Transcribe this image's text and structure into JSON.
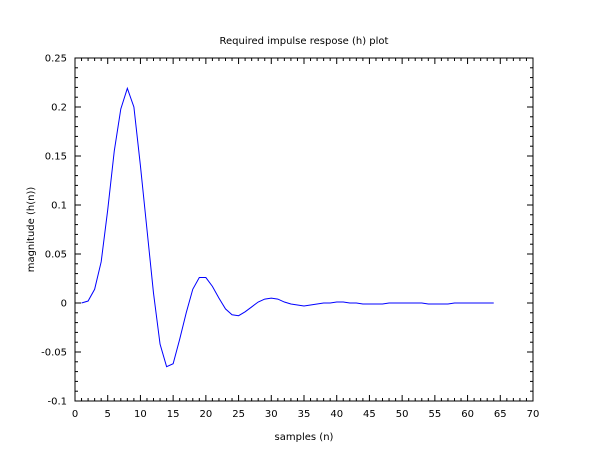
{
  "chart_data": {
    "type": "line",
    "title": "Required impulse respose (h) plot",
    "xlabel": "samples (n)",
    "ylabel": "magnitude (h(n))",
    "xlim": [
      0,
      70
    ],
    "ylim": [
      -0.1,
      0.25
    ],
    "xticks": [
      0,
      5,
      10,
      15,
      20,
      25,
      30,
      35,
      40,
      45,
      50,
      55,
      60,
      65,
      70
    ],
    "yticks": [
      -0.1,
      -0.05,
      0,
      0.05,
      0.1,
      0.15,
      0.2,
      0.25
    ],
    "xtick_labels": [
      "0",
      "5",
      "10",
      "15",
      "20",
      "25",
      "30",
      "35",
      "40",
      "45",
      "50",
      "55",
      "60",
      "65",
      "70"
    ],
    "ytick_labels": [
      "-0.1",
      "-0.05",
      "0",
      "0.05",
      "0.1",
      "0.15",
      "0.2",
      "0.25"
    ],
    "grid": false,
    "series": [
      {
        "color": "#0000ff",
        "x": [
          1,
          2,
          3,
          4,
          5,
          6,
          7,
          8,
          9,
          10,
          11,
          12,
          13,
          14,
          15,
          16,
          17,
          18,
          19,
          20,
          21,
          22,
          23,
          24,
          25,
          26,
          27,
          28,
          29,
          30,
          31,
          32,
          33,
          34,
          35,
          36,
          37,
          38,
          39,
          40,
          41,
          42,
          43,
          44,
          45,
          46,
          47,
          48,
          49,
          50,
          51,
          52,
          53,
          54,
          55,
          56,
          57,
          58,
          59,
          60,
          61,
          62,
          63,
          64
        ],
        "y": [
          0.0,
          0.002,
          0.014,
          0.042,
          0.095,
          0.155,
          0.198,
          0.219,
          0.2,
          0.14,
          0.075,
          0.01,
          -0.042,
          -0.065,
          -0.062,
          -0.037,
          -0.01,
          0.014,
          0.026,
          0.026,
          0.017,
          0.005,
          -0.006,
          -0.012,
          -0.013,
          -0.009,
          -0.004,
          0.001,
          0.004,
          0.005,
          0.004,
          0.001,
          -0.001,
          -0.002,
          -0.003,
          -0.002,
          -0.001,
          0.0,
          0.0,
          0.001,
          0.001,
          0.0,
          0.0,
          -0.001,
          -0.001,
          -0.001,
          -0.001,
          0.0,
          0.0,
          0.0,
          0.0,
          0.0,
          0.0,
          -0.001,
          -0.001,
          -0.001,
          -0.001,
          0.0,
          0.0,
          0.0,
          0.0,
          0.0,
          0.0,
          0.0
        ]
      }
    ]
  }
}
